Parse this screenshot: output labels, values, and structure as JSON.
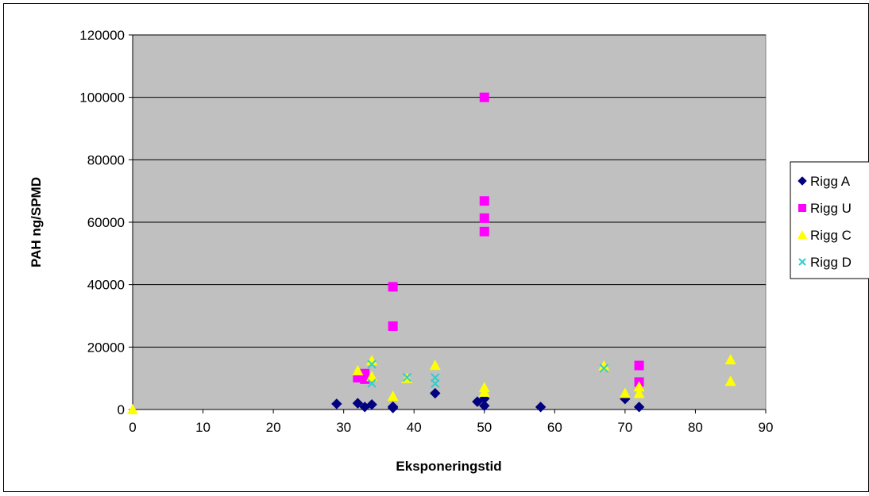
{
  "chart_data": {
    "type": "scatter",
    "title": "",
    "xlabel": "Eksponeringstid",
    "ylabel": "PAH ng/SPMD",
    "xlim": [
      0,
      90
    ],
    "ylim": [
      0,
      120000
    ],
    "x_ticks": [
      0,
      10,
      20,
      30,
      40,
      50,
      60,
      70,
      80,
      90
    ],
    "y_ticks": [
      0,
      20000,
      40000,
      60000,
      80000,
      100000,
      120000
    ],
    "grid": "horizontal major gridlines",
    "plot_background": "#C0C0C0",
    "legend_position": "right",
    "series": [
      {
        "name": "Rigg A",
        "marker": "diamond",
        "color": "#000080",
        "points": [
          [
            29,
            1800
          ],
          [
            32,
            2000
          ],
          [
            33,
            800
          ],
          [
            34,
            1600
          ],
          [
            37,
            500
          ],
          [
            37,
            900
          ],
          [
            43,
            5200
          ],
          [
            49,
            2500
          ],
          [
            50,
            3500
          ],
          [
            50,
            1200
          ],
          [
            58,
            800
          ],
          [
            70,
            3400
          ],
          [
            72,
            800
          ]
        ]
      },
      {
        "name": "Rigg U",
        "marker": "square",
        "color": "#FF00FF",
        "points": [
          [
            32,
            10200
          ],
          [
            33,
            11500
          ],
          [
            33,
            9700
          ],
          [
            37,
            39300
          ],
          [
            37,
            26700
          ],
          [
            50,
            100000
          ],
          [
            50,
            66800
          ],
          [
            50,
            61300
          ],
          [
            50,
            57000
          ],
          [
            72,
            14100
          ],
          [
            72,
            8800
          ]
        ]
      },
      {
        "name": "Rigg C",
        "marker": "triangle",
        "color": "#FFFF00",
        "points": [
          [
            0,
            0
          ],
          [
            32,
            12500
          ],
          [
            34,
            15700
          ],
          [
            34,
            10600
          ],
          [
            37,
            4300
          ],
          [
            39,
            10000
          ],
          [
            43,
            14200
          ],
          [
            50,
            7100
          ],
          [
            50,
            5600
          ],
          [
            67,
            14000
          ],
          [
            70,
            5200
          ],
          [
            72,
            7300
          ],
          [
            72,
            5200
          ],
          [
            85,
            16000
          ],
          [
            85,
            9100
          ]
        ]
      },
      {
        "name": "Rigg D",
        "marker": "x",
        "color": "#33CCCC",
        "points": [
          [
            34,
            14500
          ],
          [
            34,
            8400
          ],
          [
            39,
            10300
          ],
          [
            43,
            10200
          ],
          [
            43,
            8300
          ],
          [
            67,
            13200
          ]
        ]
      }
    ]
  }
}
